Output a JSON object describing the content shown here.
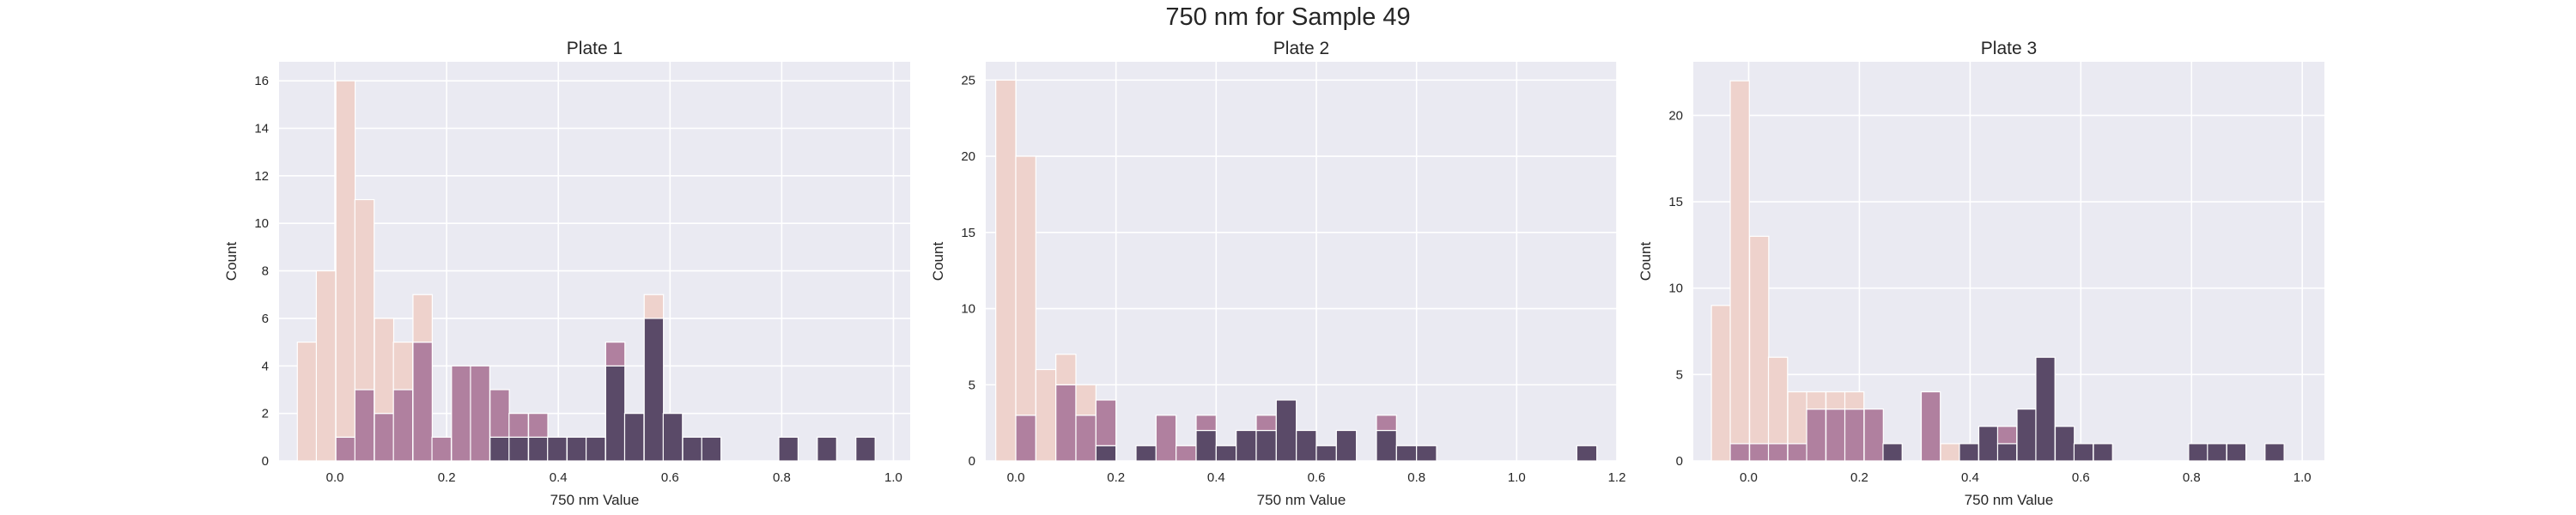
{
  "figure": {
    "title": "750 nm for Sample 49"
  },
  "colors": {
    "background": "#eaeaf2",
    "grid": "#ffffff",
    "light": "#eed2cc",
    "mid": "#b0809f",
    "dark": "#5a4a68"
  },
  "chart_data": [
    {
      "type": "bar",
      "title": "Plate 1",
      "xlabel": "750 nm Value",
      "ylabel": "Count",
      "xlim": [
        -0.1,
        1.03
      ],
      "ylim": [
        0,
        16.8
      ],
      "xticks": [
        0.0,
        0.2,
        0.4,
        0.6,
        0.8,
        1.0
      ],
      "xtick_labels": [
        "0.0",
        "0.2",
        "0.4",
        "0.6",
        "0.8",
        "1.0"
      ],
      "yticks": [
        0,
        2,
        4,
        6,
        8,
        10,
        12,
        14,
        16
      ],
      "ytick_labels": [
        "0",
        "2",
        "4",
        "6",
        "8",
        "10",
        "12",
        "14",
        "16"
      ],
      "grid": true,
      "bin_width": 0.0345,
      "bins": [
        {
          "x": -0.05,
          "light": 5,
          "mid": 0,
          "dark": 0
        },
        {
          "x": -0.016,
          "light": 8,
          "mid": 0,
          "dark": 0
        },
        {
          "x": 0.019,
          "light": 15,
          "mid": 1,
          "dark": 0
        },
        {
          "x": 0.053,
          "light": 8,
          "mid": 3,
          "dark": 0
        },
        {
          "x": 0.088,
          "light": 4,
          "mid": 2,
          "dark": 0
        },
        {
          "x": 0.122,
          "light": 2,
          "mid": 3,
          "dark": 0
        },
        {
          "x": 0.157,
          "light": 2,
          "mid": 5,
          "dark": 0
        },
        {
          "x": 0.191,
          "light": 0,
          "mid": 1,
          "dark": 0
        },
        {
          "x": 0.226,
          "light": 0,
          "mid": 4,
          "dark": 0
        },
        {
          "x": 0.26,
          "light": 0,
          "mid": 4,
          "dark": 0
        },
        {
          "x": 0.295,
          "light": 0,
          "mid": 2,
          "dark": 1
        },
        {
          "x": 0.329,
          "light": 0,
          "mid": 1,
          "dark": 1
        },
        {
          "x": 0.364,
          "light": 0,
          "mid": 1,
          "dark": 1
        },
        {
          "x": 0.398,
          "light": 0,
          "mid": 0,
          "dark": 1
        },
        {
          "x": 0.433,
          "light": 0,
          "mid": 0,
          "dark": 1
        },
        {
          "x": 0.467,
          "light": 0,
          "mid": 0,
          "dark": 1
        },
        {
          "x": 0.502,
          "light": 0,
          "mid": 1,
          "dark": 4
        },
        {
          "x": 0.536,
          "light": 0,
          "mid": 0,
          "dark": 2
        },
        {
          "x": 0.571,
          "light": 1,
          "mid": 0,
          "dark": 6
        },
        {
          "x": 0.605,
          "light": 0,
          "mid": 0,
          "dark": 2
        },
        {
          "x": 0.64,
          "light": 0,
          "mid": 0,
          "dark": 1
        },
        {
          "x": 0.674,
          "light": 0,
          "mid": 0,
          "dark": 1
        },
        {
          "x": 0.812,
          "light": 0,
          "mid": 0,
          "dark": 1
        },
        {
          "x": 0.881,
          "light": 0,
          "mid": 0,
          "dark": 1
        },
        {
          "x": 0.95,
          "light": 0,
          "mid": 0,
          "dark": 1
        }
      ]
    },
    {
      "type": "bar",
      "title": "Plate 2",
      "xlabel": "750 nm Value",
      "ylabel": "Count",
      "xlim": [
        -0.06,
        1.2
      ],
      "ylim": [
        0,
        26.2
      ],
      "xticks": [
        0.0,
        0.2,
        0.4,
        0.6,
        0.8,
        1.0,
        1.2
      ],
      "xtick_labels": [
        "0.0",
        "0.2",
        "0.4",
        "0.6",
        "0.8",
        "1.0",
        "1.2"
      ],
      "yticks": [
        0,
        5,
        10,
        15,
        20,
        25
      ],
      "ytick_labels": [
        "0",
        "5",
        "10",
        "15",
        "20",
        "25"
      ],
      "grid": true,
      "bin_width": 0.04,
      "bins": [
        {
          "x": -0.02,
          "light": 25,
          "mid": 0,
          "dark": 0
        },
        {
          "x": 0.02,
          "light": 17,
          "mid": 3,
          "dark": 0
        },
        {
          "x": 0.06,
          "light": 6,
          "mid": 0,
          "dark": 0
        },
        {
          "x": 0.1,
          "light": 2,
          "mid": 5,
          "dark": 0
        },
        {
          "x": 0.14,
          "light": 2,
          "mid": 3,
          "dark": 0
        },
        {
          "x": 0.18,
          "light": 0,
          "mid": 3,
          "dark": 1
        },
        {
          "x": 0.26,
          "light": 0,
          "mid": 0,
          "dark": 1
        },
        {
          "x": 0.3,
          "light": 0,
          "mid": 3,
          "dark": 0
        },
        {
          "x": 0.34,
          "light": 0,
          "mid": 1,
          "dark": 0
        },
        {
          "x": 0.38,
          "light": 0,
          "mid": 1,
          "dark": 2
        },
        {
          "x": 0.42,
          "light": 0,
          "mid": 0,
          "dark": 1
        },
        {
          "x": 0.46,
          "light": 0,
          "mid": 0,
          "dark": 2
        },
        {
          "x": 0.5,
          "light": 0,
          "mid": 1,
          "dark": 2
        },
        {
          "x": 0.54,
          "light": 0,
          "mid": 0,
          "dark": 4
        },
        {
          "x": 0.58,
          "light": 0,
          "mid": 0,
          "dark": 2
        },
        {
          "x": 0.62,
          "light": 0,
          "mid": 0,
          "dark": 1
        },
        {
          "x": 0.66,
          "light": 0,
          "mid": 0,
          "dark": 2
        },
        {
          "x": 0.74,
          "light": 0,
          "mid": 1,
          "dark": 2
        },
        {
          "x": 0.78,
          "light": 0,
          "mid": 0,
          "dark": 1
        },
        {
          "x": 0.82,
          "light": 0,
          "mid": 0,
          "dark": 1
        },
        {
          "x": 1.14,
          "light": 0,
          "mid": 0,
          "dark": 1
        }
      ]
    },
    {
      "type": "bar",
      "title": "Plate 3",
      "xlabel": "750 nm Value",
      "ylabel": "Count",
      "xlim": [
        -0.1,
        1.04
      ],
      "ylim": [
        0,
        23.1
      ],
      "xticks": [
        0.0,
        0.2,
        0.4,
        0.6,
        0.8,
        1.0
      ],
      "xtick_labels": [
        "0.0",
        "0.2",
        "0.4",
        "0.6",
        "0.8",
        "1.0"
      ],
      "yticks": [
        0,
        5,
        10,
        15,
        20
      ],
      "ytick_labels": [
        "0",
        "5",
        "10",
        "15",
        "20"
      ],
      "grid": true,
      "bin_width": 0.0345,
      "bins": [
        {
          "x": -0.05,
          "light": 9,
          "mid": 0,
          "dark": 0
        },
        {
          "x": -0.016,
          "light": 21,
          "mid": 1,
          "dark": 0
        },
        {
          "x": 0.019,
          "light": 12,
          "mid": 1,
          "dark": 0
        },
        {
          "x": 0.053,
          "light": 5,
          "mid": 1,
          "dark": 0
        },
        {
          "x": 0.088,
          "light": 3,
          "mid": 1,
          "dark": 0
        },
        {
          "x": 0.122,
          "light": 1,
          "mid": 3,
          "dark": 0
        },
        {
          "x": 0.157,
          "light": 1,
          "mid": 3,
          "dark": 0
        },
        {
          "x": 0.191,
          "light": 1,
          "mid": 3,
          "dark": 0
        },
        {
          "x": 0.226,
          "light": 0,
          "mid": 3,
          "dark": 0
        },
        {
          "x": 0.26,
          "light": 0,
          "mid": 0,
          "dark": 1
        },
        {
          "x": 0.329,
          "light": 0,
          "mid": 4,
          "dark": 0
        },
        {
          "x": 0.364,
          "light": 1,
          "mid": 0,
          "dark": 0
        },
        {
          "x": 0.398,
          "light": 0,
          "mid": 0,
          "dark": 1
        },
        {
          "x": 0.433,
          "light": 0,
          "mid": 0,
          "dark": 2
        },
        {
          "x": 0.467,
          "light": 0,
          "mid": 1,
          "dark": 1
        },
        {
          "x": 0.502,
          "light": 0,
          "mid": 0,
          "dark": 3
        },
        {
          "x": 0.536,
          "light": 0,
          "mid": 0,
          "dark": 6
        },
        {
          "x": 0.571,
          "light": 0,
          "mid": 0,
          "dark": 2
        },
        {
          "x": 0.605,
          "light": 0,
          "mid": 0,
          "dark": 1
        },
        {
          "x": 0.64,
          "light": 0,
          "mid": 0,
          "dark": 1
        },
        {
          "x": 0.812,
          "light": 0,
          "mid": 0,
          "dark": 1
        },
        {
          "x": 0.846,
          "light": 0,
          "mid": 0,
          "dark": 1
        },
        {
          "x": 0.881,
          "light": 0,
          "mid": 0,
          "dark": 1
        },
        {
          "x": 0.95,
          "light": 0,
          "mid": 0,
          "dark": 1
        }
      ]
    }
  ]
}
